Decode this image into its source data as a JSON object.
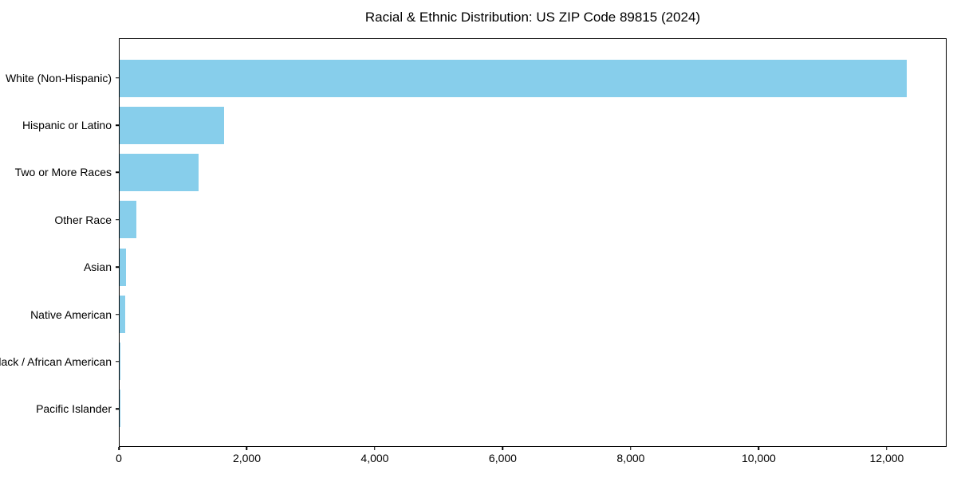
{
  "chart_data": {
    "type": "bar",
    "orientation": "horizontal",
    "title": "Racial & Ethnic Distribution: US ZIP Code 89815 (2024)",
    "categories": [
      "White (Non-Hispanic)",
      "Hispanic or Latino",
      "Two or More Races",
      "Other Race",
      "Asian",
      "Native American",
      "Black / African American",
      "Pacific Islander"
    ],
    "values": [
      12320,
      1630,
      1230,
      262,
      100,
      85,
      12,
      2
    ],
    "bar_color": "#87CEEB",
    "xlabel": "",
    "ylabel": "",
    "xlim": [
      0,
      12936
    ],
    "x_ticks": [
      0,
      2000,
      4000,
      6000,
      8000,
      10000,
      12000
    ],
    "x_tick_labels": [
      "0",
      "2,000",
      "4,000",
      "6,000",
      "8,000",
      "10,000",
      "12,000"
    ],
    "grid": false,
    "legend_position": "none",
    "background_color": "#ffffff",
    "text_color": "#000000"
  }
}
